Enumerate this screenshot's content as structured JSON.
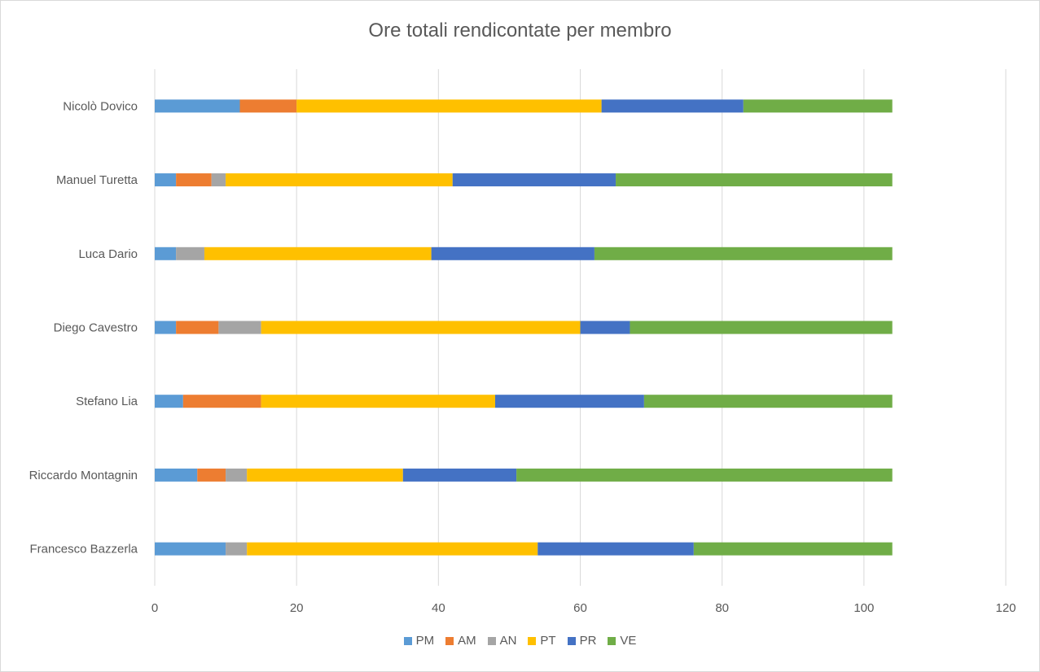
{
  "chart_data": {
    "type": "bar",
    "orientation": "horizontal",
    "stacked": true,
    "title": "Ore totali rendicontate per membro",
    "xlabel": "",
    "ylabel": "",
    "xlim": [
      0,
      120
    ],
    "xticks": [
      0,
      20,
      40,
      60,
      80,
      100,
      120
    ],
    "grid": "vertical",
    "legend_position": "bottom",
    "categories": [
      "Nicolò Dovico",
      "Manuel Turetta",
      "Luca Dario",
      "Diego Cavestro",
      "Stefano Lia",
      "Riccardo Montagnin",
      "Francesco Bazzerla"
    ],
    "series": [
      {
        "name": "PM",
        "color": "#5b9bd5",
        "values": [
          12,
          3,
          3,
          3,
          4,
          6,
          10
        ]
      },
      {
        "name": "AM",
        "color": "#ed7d31",
        "values": [
          8,
          5,
          0,
          6,
          11,
          4,
          0
        ]
      },
      {
        "name": "AN",
        "color": "#a5a5a5",
        "values": [
          0,
          2,
          4,
          6,
          0,
          3,
          3
        ]
      },
      {
        "name": "PT",
        "color": "#ffc000",
        "values": [
          43,
          32,
          32,
          45,
          33,
          22,
          41
        ]
      },
      {
        "name": "PR",
        "color": "#4472c4",
        "values": [
          20,
          23,
          23,
          7,
          21,
          16,
          22
        ]
      },
      {
        "name": "VE",
        "color": "#70ad47",
        "values": [
          21,
          39,
          42,
          37,
          35,
          53,
          28
        ]
      }
    ]
  }
}
